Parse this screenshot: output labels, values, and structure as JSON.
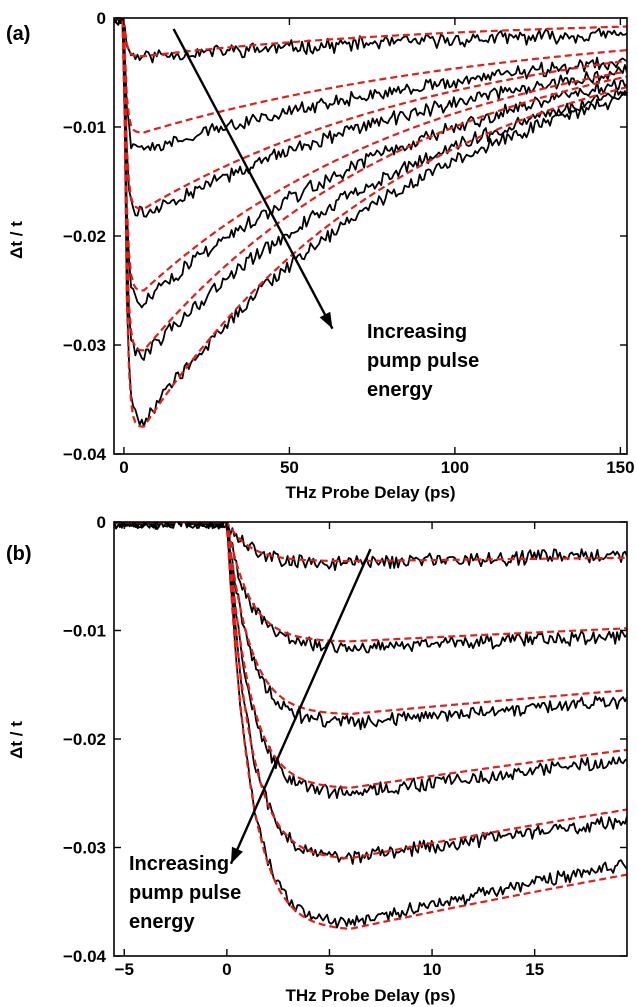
{
  "chart_data": [
    {
      "type": "line",
      "panel_label": "(a)",
      "xlabel": "THz Probe Delay (ps)",
      "ylabel": "Δt / t",
      "xlim": [
        -3,
        152
      ],
      "ylim": [
        -0.04,
        0
      ],
      "xticks": [
        0,
        50,
        100,
        150
      ],
      "xtick_labels": [
        "0",
        "50",
        "100",
        "150"
      ],
      "yticks": [
        0,
        -0.01,
        -0.02,
        -0.03,
        -0.04
      ],
      "ytick_labels": [
        "0",
        "−0.01",
        "−0.02",
        "−0.03",
        "−0.04"
      ],
      "grid": false,
      "annotation": {
        "lines": [
          "Increasing",
          "pump pulse",
          "energy"
        ],
        "arrow_from": [
          15,
          -0.001
        ],
        "arrow_to": [
          63,
          -0.0285
        ]
      },
      "series": [
        {
          "style": "measured",
          "color": "#000000",
          "peaks": [
            -0.0035,
            -0.012,
            -0.018,
            -0.026,
            -0.031,
            -0.037
          ],
          "peak_delay_ps": 6,
          "end_values": [
            -0.0015,
            -0.004,
            -0.005,
            -0.006,
            -0.007,
            -0.0075
          ]
        },
        {
          "style": "fit",
          "color": "#e0201b",
          "peaks": [
            -0.0035,
            -0.0105,
            -0.0175,
            -0.025,
            -0.0305,
            -0.0375
          ],
          "peak_delay_ps": 6,
          "end_values": [
            -0.0008,
            -0.003,
            -0.004,
            -0.005,
            -0.0055,
            -0.0065
          ]
        }
      ]
    },
    {
      "type": "line",
      "panel_label": "(b)",
      "xlabel": "THz Probe Delay (ps)",
      "ylabel": "Δt / t",
      "xlim": [
        -5.5,
        19.5
      ],
      "ylim": [
        -0.04,
        0
      ],
      "xticks": [
        -5,
        0,
        5,
        10,
        15
      ],
      "xtick_labels": [
        "−5",
        "0",
        "5",
        "10",
        "15"
      ],
      "yticks": [
        0,
        -0.01,
        -0.02,
        -0.03,
        -0.04
      ],
      "ytick_labels": [
        "0",
        "−0.01",
        "−0.02",
        "−0.03",
        "−0.04"
      ],
      "grid": false,
      "annotation": {
        "lines": [
          "Increasing",
          "pump pulse",
          "energy"
        ],
        "arrow_from": [
          7,
          -0.0025
        ],
        "arrow_to": [
          0.2,
          -0.0315
        ]
      },
      "series": [
        {
          "style": "measured",
          "color": "#000000",
          "peaks": [
            -0.0038,
            -0.0115,
            -0.0185,
            -0.025,
            -0.031,
            -0.037
          ],
          "peak_delay_ps": 6,
          "end_values": [
            -0.003,
            -0.0105,
            -0.0165,
            -0.022,
            -0.0275,
            -0.0315
          ]
        },
        {
          "style": "fit",
          "color": "#e0201b",
          "peaks": [
            -0.0036,
            -0.011,
            -0.0177,
            -0.0245,
            -0.031,
            -0.0375
          ],
          "peak_delay_ps": 6,
          "end_values": [
            -0.0033,
            -0.0098,
            -0.0155,
            -0.021,
            -0.0265,
            -0.0325
          ]
        }
      ]
    }
  ]
}
